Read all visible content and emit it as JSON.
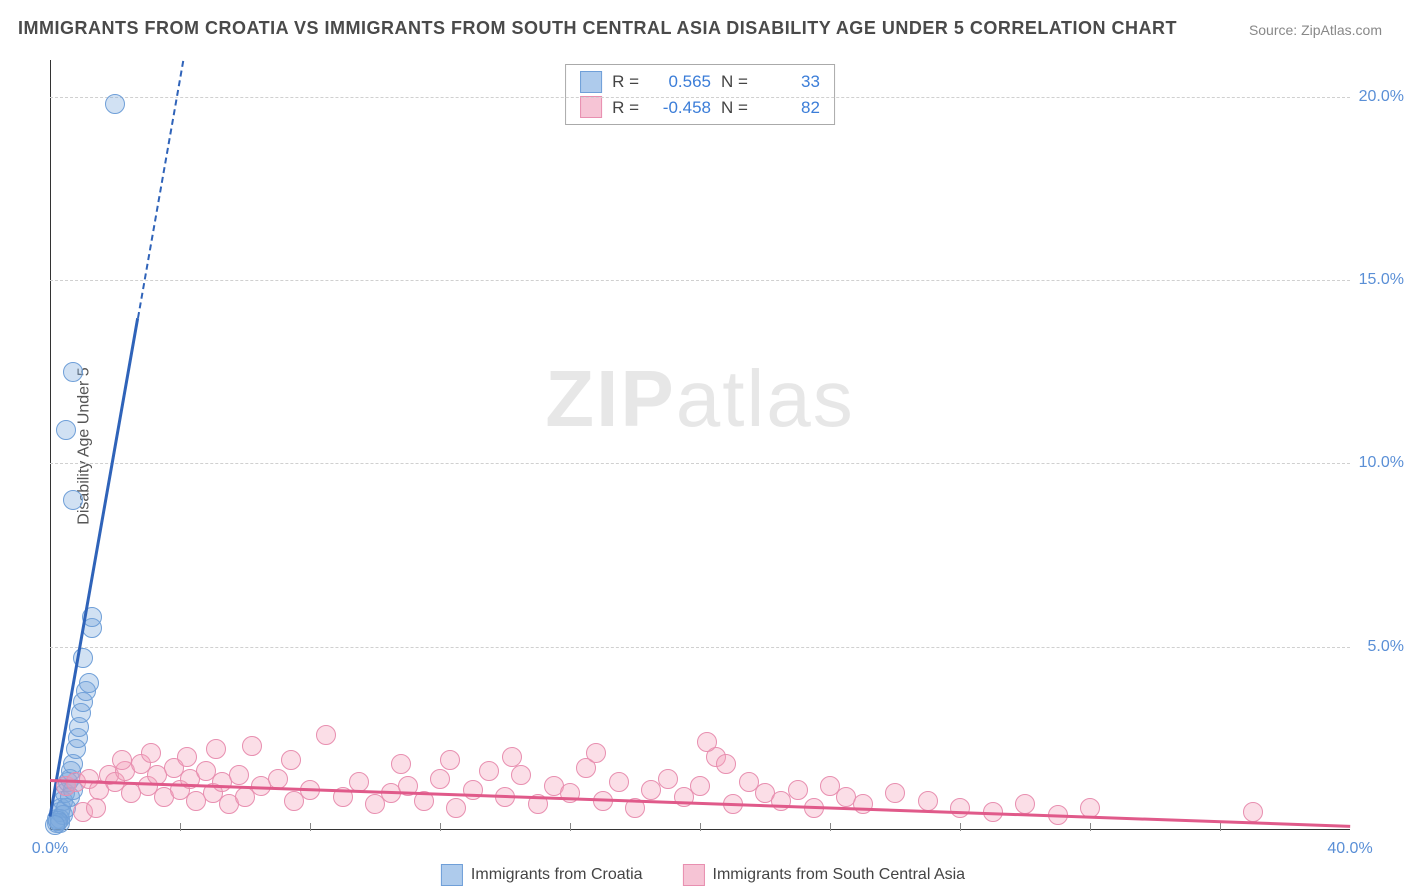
{
  "title": "IMMIGRANTS FROM CROATIA VS IMMIGRANTS FROM SOUTH CENTRAL ASIA DISABILITY AGE UNDER 5 CORRELATION CHART",
  "source_prefix": "Source: ",
  "source_site": "ZipAtlas.com",
  "ylabel": "Disability Age Under 5",
  "watermark_bold": "ZIP",
  "watermark_rest": "atlas",
  "chart": {
    "type": "scatter",
    "xlim": [
      0,
      40
    ],
    "ylim": [
      0,
      21
    ],
    "x_ticks_major": [
      0,
      40
    ],
    "x_ticks_minor": [
      4,
      8,
      12,
      16,
      20,
      24,
      28,
      32,
      36
    ],
    "y_ticks": [
      5,
      10,
      15,
      20
    ],
    "x_tick_labels": [
      "0.0%",
      "40.0%"
    ],
    "y_tick_labels": [
      "5.0%",
      "10.0%",
      "15.0%",
      "20.0%"
    ],
    "grid_color": "#d0d0d0",
    "background_color": "#ffffff",
    "marker_size": 18,
    "series": [
      {
        "name": "Immigrants from Croatia",
        "color_fill": "rgba(124,169,222,0.35)",
        "color_stroke": "#6f9fd8",
        "swatch_fill": "#aecbec",
        "swatch_stroke": "#6f9fd8",
        "R_label": "R =",
        "R": "0.565",
        "N_label": "N =",
        "N": "33",
        "trend": {
          "x0": 0,
          "y0": 0.4,
          "x1": 2.7,
          "y1": 14.0,
          "color": "#2f63b9",
          "width": 3,
          "dash_extend_to_y": 21
        },
        "points": [
          [
            0.2,
            0.3
          ],
          [
            0.3,
            0.5
          ],
          [
            0.35,
            0.6
          ],
          [
            0.4,
            0.8
          ],
          [
            0.45,
            1.0
          ],
          [
            0.5,
            1.2
          ],
          [
            0.55,
            1.3
          ],
          [
            0.6,
            1.4
          ],
          [
            0.65,
            1.6
          ],
          [
            0.7,
            1.8
          ],
          [
            0.8,
            2.2
          ],
          [
            0.85,
            2.5
          ],
          [
            0.9,
            2.8
          ],
          [
            0.95,
            3.2
          ],
          [
            1.0,
            3.5
          ],
          [
            0.3,
            0.3
          ],
          [
            0.4,
            0.4
          ],
          [
            0.5,
            0.6
          ],
          [
            0.6,
            0.9
          ],
          [
            0.7,
            1.1
          ],
          [
            0.3,
            0.2
          ],
          [
            0.2,
            0.2
          ],
          [
            0.25,
            0.25
          ],
          [
            0.15,
            0.15
          ],
          [
            1.1,
            3.8
          ],
          [
            1.2,
            4.0
          ],
          [
            1.0,
            4.7
          ],
          [
            1.3,
            5.5
          ],
          [
            1.3,
            5.8
          ],
          [
            0.7,
            9.0
          ],
          [
            0.5,
            10.9
          ],
          [
            0.7,
            12.5
          ],
          [
            2.0,
            19.8
          ]
        ]
      },
      {
        "name": "Immigrants from South Central Asia",
        "color_fill": "rgba(244,160,186,0.35)",
        "color_stroke": "#e88fb0",
        "swatch_fill": "#f6c4d5",
        "swatch_stroke": "#e88fb0",
        "R_label": "R =",
        "R": "-0.458",
        "N_label": "N =",
        "N": "82",
        "trend": {
          "x0": 0,
          "y0": 1.4,
          "x1": 40,
          "y1": 0.15,
          "color": "#e05a8a",
          "width": 3
        },
        "points": [
          [
            0.5,
            1.2
          ],
          [
            0.8,
            1.3
          ],
          [
            1.2,
            1.4
          ],
          [
            1.5,
            1.1
          ],
          [
            1.8,
            1.5
          ],
          [
            2.0,
            1.3
          ],
          [
            2.3,
            1.6
          ],
          [
            2.5,
            1.0
          ],
          [
            2.8,
            1.8
          ],
          [
            3.0,
            1.2
          ],
          [
            3.3,
            1.5
          ],
          [
            3.5,
            0.9
          ],
          [
            3.8,
            1.7
          ],
          [
            4.0,
            1.1
          ],
          [
            4.3,
            1.4
          ],
          [
            4.5,
            0.8
          ],
          [
            4.8,
            1.6
          ],
          [
            5.0,
            1.0
          ],
          [
            5.3,
            1.3
          ],
          [
            5.5,
            0.7
          ],
          [
            5.8,
            1.5
          ],
          [
            6.0,
            0.9
          ],
          [
            6.5,
            1.2
          ],
          [
            7.0,
            1.4
          ],
          [
            7.5,
            0.8
          ],
          [
            8.0,
            1.1
          ],
          [
            8.5,
            2.6
          ],
          [
            9.0,
            0.9
          ],
          [
            9.5,
            1.3
          ],
          [
            10.0,
            0.7
          ],
          [
            10.5,
            1.0
          ],
          [
            11.0,
            1.2
          ],
          [
            11.5,
            0.8
          ],
          [
            12.0,
            1.4
          ],
          [
            12.5,
            0.6
          ],
          [
            13.0,
            1.1
          ],
          [
            13.5,
            1.6
          ],
          [
            14.0,
            0.9
          ],
          [
            14.5,
            1.5
          ],
          [
            15.0,
            0.7
          ],
          [
            15.5,
            1.2
          ],
          [
            16.0,
            1.0
          ],
          [
            16.5,
            1.7
          ],
          [
            17.0,
            0.8
          ],
          [
            17.5,
            1.3
          ],
          [
            18.0,
            0.6
          ],
          [
            18.5,
            1.1
          ],
          [
            19.0,
            1.4
          ],
          [
            19.5,
            0.9
          ],
          [
            20.0,
            1.2
          ],
          [
            20.5,
            2.0
          ],
          [
            21.0,
            0.7
          ],
          [
            21.5,
            1.3
          ],
          [
            22.0,
            1.0
          ],
          [
            22.5,
            0.8
          ],
          [
            23.0,
            1.1
          ],
          [
            23.5,
            0.6
          ],
          [
            24.0,
            1.2
          ],
          [
            24.5,
            0.9
          ],
          [
            25.0,
            0.7
          ],
          [
            26.0,
            1.0
          ],
          [
            27.0,
            0.8
          ],
          [
            28.0,
            0.6
          ],
          [
            29.0,
            0.5
          ],
          [
            30.0,
            0.7
          ],
          [
            31.0,
            0.4
          ],
          [
            32.0,
            0.6
          ],
          [
            37.0,
            0.5
          ],
          [
            2.2,
            1.9
          ],
          [
            3.1,
            2.1
          ],
          [
            4.2,
            2.0
          ],
          [
            5.1,
            2.2
          ],
          [
            6.2,
            2.3
          ],
          [
            7.4,
            1.9
          ],
          [
            10.8,
            1.8
          ],
          [
            12.3,
            1.9
          ],
          [
            14.2,
            2.0
          ],
          [
            16.8,
            2.1
          ],
          [
            20.2,
            2.4
          ],
          [
            20.8,
            1.8
          ],
          [
            1.0,
            0.5
          ],
          [
            1.4,
            0.6
          ]
        ]
      }
    ]
  }
}
